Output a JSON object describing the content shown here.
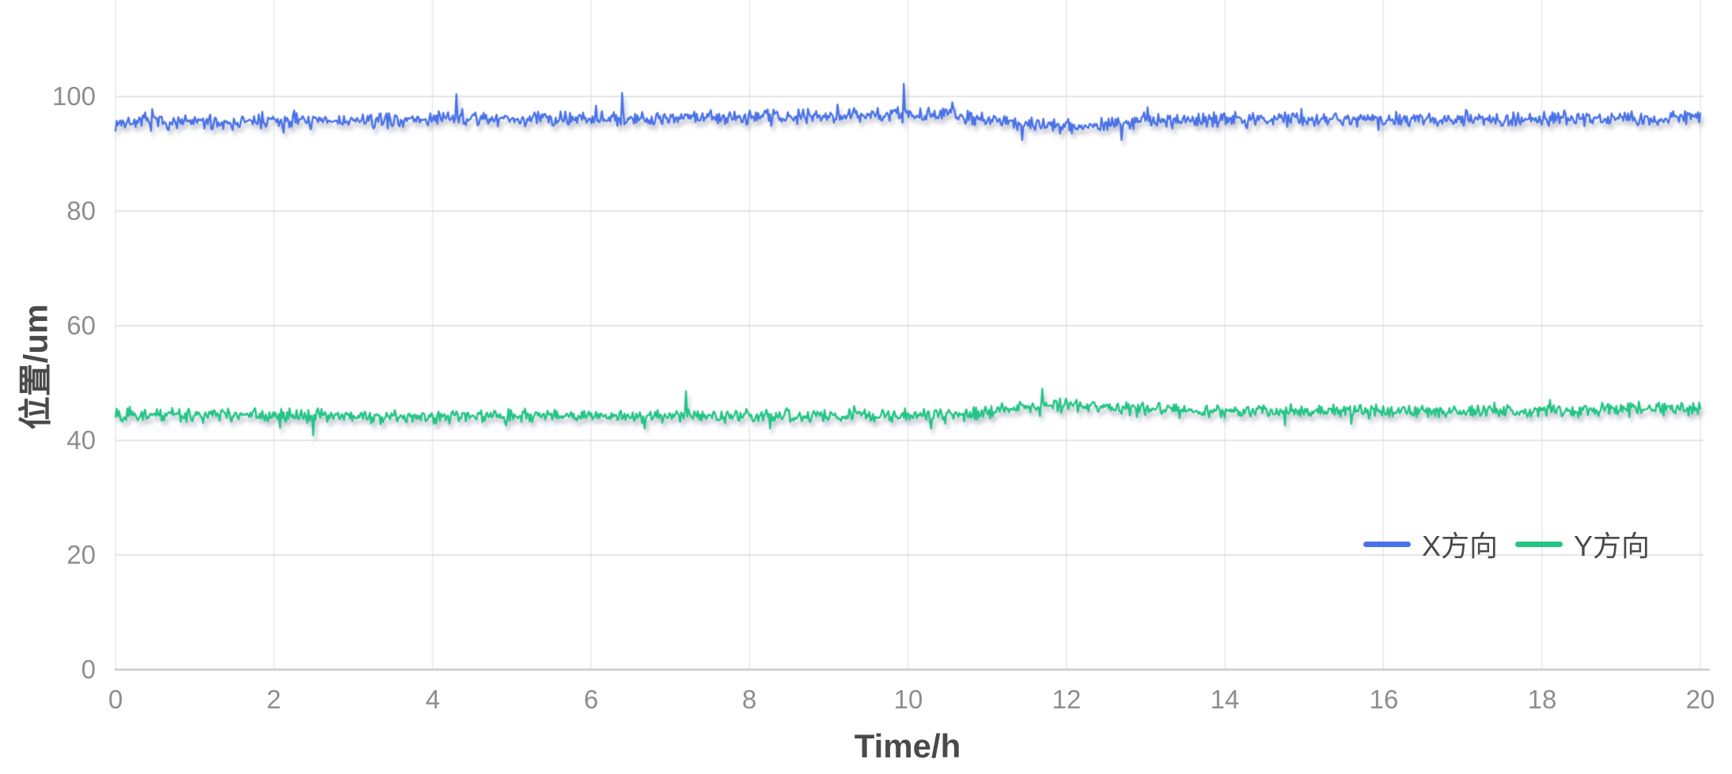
{
  "chart_data": {
    "type": "line",
    "title": "",
    "xlabel": "Time/h",
    "ylabel": "位置/um",
    "xlim": [
      0,
      20
    ],
    "ylim": [
      0,
      117
    ],
    "grid": true,
    "legend_position": "inside-right-lower",
    "x_ticks": [
      0,
      2,
      4,
      6,
      8,
      10,
      12,
      14,
      16,
      18,
      20
    ],
    "x_tick_labels": [
      "0",
      "2",
      "4",
      "6",
      "8",
      "10",
      "12",
      "14",
      "16",
      "18",
      "20"
    ],
    "y_ticks": [
      0,
      20,
      40,
      60,
      80,
      100
    ],
    "y_tick_labels": [
      "0",
      "20",
      "40",
      "60",
      "80",
      "100"
    ],
    "noise_seed": 7,
    "points_per_series": 1340,
    "series": [
      {
        "name": "X方向",
        "color": "#4A72E8",
        "mean_level": 96,
        "noise_amplitude": 1.5,
        "spike_bias": "up",
        "trend": {
          "t": [
            0,
            1,
            2,
            3,
            4,
            5,
            6,
            7,
            8,
            9,
            9.8,
            10.4,
            11,
            11.6,
            12,
            12.5,
            13,
            14,
            15,
            16,
            17,
            18,
            19,
            20
          ],
          "v": [
            95.4,
            95.5,
            95.6,
            95.7,
            96.0,
            96.1,
            96.2,
            96.3,
            96.4,
            96.6,
            96.9,
            96.7,
            96.3,
            95.2,
            94.8,
            95.0,
            95.6,
            95.9,
            96.0,
            96.1,
            95.9,
            96.1,
            96.2,
            96.2
          ]
        },
        "spikes": [
          {
            "t": 9.95,
            "v": 102.2
          },
          {
            "t": 4.3,
            "v": 100.4
          },
          {
            "t": 6.4,
            "v": 100.6
          },
          {
            "t": 12.7,
            "v": 92.4
          }
        ]
      },
      {
        "name": "Y方向",
        "color": "#22C584",
        "mean_level": 44.8,
        "noise_amplitude": 1.4,
        "spike_bias": "down",
        "trend": {
          "t": [
            0,
            1,
            2,
            3,
            4,
            5,
            6,
            7,
            8,
            9,
            10,
            10.8,
            11.5,
            12,
            12.6,
            13,
            14,
            15,
            16,
            17,
            18,
            19,
            20
          ],
          "v": [
            44.5,
            44.4,
            44.5,
            44.2,
            44.1,
            44.3,
            44.2,
            44.3,
            44.4,
            44.3,
            44.4,
            44.6,
            46.0,
            46.2,
            45.7,
            45.4,
            45.1,
            45.0,
            45.3,
            45.0,
            45.2,
            45.4,
            45.6
          ]
        },
        "spikes": [
          {
            "t": 7.2,
            "v": 48.6
          },
          {
            "t": 2.5,
            "v": 40.9
          },
          {
            "t": 11.7,
            "v": 49.0
          }
        ]
      }
    ]
  },
  "colors": {
    "grid_vertical": "#e8e8e8",
    "grid_horizontal": "#dddddd",
    "axis_baseline": "#c8c8c8",
    "tick_label": "#8e8e8e",
    "axis_title": "#4a4a4a",
    "series_x": "#4A72E8",
    "series_y": "#22C584"
  }
}
